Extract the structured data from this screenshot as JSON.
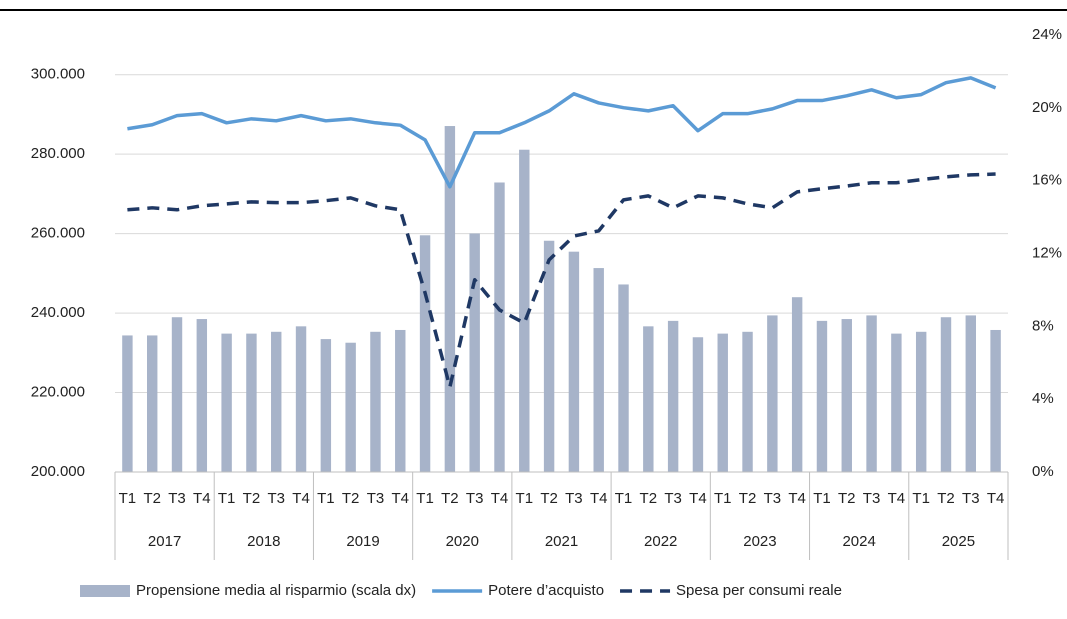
{
  "chart_data": {
    "type": "combo",
    "categories": [
      "T1",
      "T2",
      "T3",
      "T4",
      "T1",
      "T2",
      "T3",
      "T4",
      "T1",
      "T2",
      "T3",
      "T4",
      "T1",
      "T2",
      "T3",
      "T4",
      "T1",
      "T2",
      "T3",
      "T4",
      "T1",
      "T2",
      "T3",
      "T4",
      "T1",
      "T2",
      "T3",
      "T4",
      "T1",
      "T2",
      "T3",
      "T4",
      "T1",
      "T2",
      "T3",
      "T4"
    ],
    "years": [
      "2017",
      "2018",
      "2019",
      "2020",
      "2021",
      "2022",
      "2023",
      "2024",
      "2025"
    ],
    "ylim": [
      200000,
      310000
    ],
    "yticks": [
      {
        "value": 200000,
        "label": "200.000"
      },
      {
        "value": 220000,
        "label": "220.000"
      },
      {
        "value": 240000,
        "label": "240.000"
      },
      {
        "value": 260000,
        "label": "260.000"
      },
      {
        "value": 280000,
        "label": "280.000"
      },
      {
        "value": 300000,
        "label": "300.000"
      }
    ],
    "y2lim": [
      0,
      24
    ],
    "y2ticks": [
      {
        "value": 0,
        "label": "0%"
      },
      {
        "value": 4,
        "label": "4%"
      },
      {
        "value": 8,
        "label": "8%"
      },
      {
        "value": 12,
        "label": "12%"
      },
      {
        "value": 16,
        "label": "16%"
      },
      {
        "value": 20,
        "label": "20%"
      },
      {
        "value": 24,
        "label": "24%"
      }
    ],
    "grid": true,
    "legend": "bottom",
    "series": [
      {
        "name": "Propensione media al risparmio (scala dx)",
        "type": "bar",
        "axis": "y2",
        "color": "#a7b3c9",
        "values": [
          7.5,
          7.5,
          8.5,
          8.4,
          7.6,
          7.6,
          7.7,
          8.0,
          7.3,
          7.1,
          7.7,
          7.8,
          13.0,
          19.0,
          13.1,
          15.9,
          17.7,
          12.7,
          12.1,
          11.2,
          10.3,
          8.0,
          8.3,
          7.4,
          7.6,
          7.7,
          8.6,
          9.6,
          8.3,
          8.4,
          8.6,
          7.6,
          7.7,
          8.5,
          8.6,
          7.8
        ]
      },
      {
        "name": "Potere d’acquisto",
        "type": "line",
        "color": "#5b9bd5",
        "values": [
          286400,
          287400,
          289700,
          290200,
          287900,
          288900,
          288400,
          289700,
          288400,
          288900,
          287900,
          287300,
          283600,
          271800,
          285400,
          285400,
          287900,
          290900,
          295200,
          292900,
          291700,
          290900,
          292200,
          285900,
          290200,
          290200,
          291400,
          293500,
          293500,
          294700,
          296200,
          294200,
          295000,
          298000,
          299200,
          296700
        ]
      },
      {
        "name": "Spesa per consumi reale",
        "type": "line",
        "dashed": true,
        "color": "#1f3864",
        "values": [
          266000,
          266500,
          266000,
          267000,
          267500,
          268000,
          267800,
          267800,
          268300,
          269000,
          267000,
          266000,
          245100,
          221400,
          248400,
          240800,
          237500,
          253400,
          259400,
          260700,
          268500,
          269500,
          266500,
          269500,
          269000,
          267500,
          266500,
          270500,
          271300,
          272000,
          272800,
          272800,
          273600,
          274300,
          274800,
          275000
        ]
      }
    ]
  }
}
